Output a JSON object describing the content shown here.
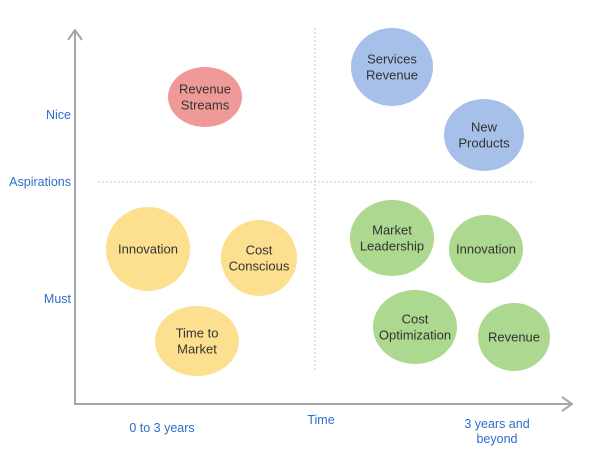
{
  "axes": {
    "y_labels": {
      "nice": "Nice",
      "aspirations": "Aspirations",
      "must": "Must"
    },
    "x_labels": {
      "short_term": "0 to 3 years",
      "time": "Time",
      "long_term_line1": "3 years and",
      "long_term_line2": "beyond"
    }
  },
  "colors": {
    "axis": "#a6a6a6",
    "divider": "#c8c8c8",
    "label_blue": "#2a6fc9",
    "red": "#ef9a98",
    "blue": "#a7c0ea",
    "yellow": "#fde08f",
    "green": "#acd88f"
  },
  "bubbles": [
    {
      "id": "revenue-streams",
      "lines": [
        "Revenue",
        "Streams"
      ],
      "color": "red"
    },
    {
      "id": "services-revenue",
      "lines": [
        "Services",
        "Revenue"
      ],
      "color": "blue"
    },
    {
      "id": "new-products",
      "lines": [
        "New",
        "Products"
      ],
      "color": "blue"
    },
    {
      "id": "innovation-left",
      "lines": [
        "Innovation"
      ],
      "color": "yellow"
    },
    {
      "id": "cost-conscious",
      "lines": [
        "Cost",
        "Conscious"
      ],
      "color": "yellow"
    },
    {
      "id": "time-to-market",
      "lines": [
        "Time to",
        "Market"
      ],
      "color": "yellow"
    },
    {
      "id": "market-leadership",
      "lines": [
        "Market",
        "Leadership"
      ],
      "color": "green"
    },
    {
      "id": "innovation-right",
      "lines": [
        "Innovation"
      ],
      "color": "green"
    },
    {
      "id": "cost-optimization",
      "lines": [
        "Cost",
        "Optimization"
      ],
      "color": "green"
    },
    {
      "id": "revenue",
      "lines": [
        "Revenue"
      ],
      "color": "green"
    }
  ]
}
